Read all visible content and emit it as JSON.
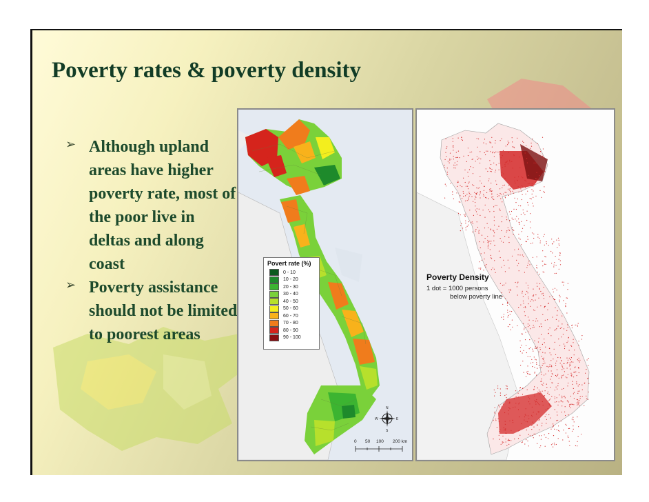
{
  "slide": {
    "title": "Poverty rates & poverty density",
    "bullets": [
      {
        "marker": "➢",
        "text": "Although upland areas have higher poverty rate, most of the poor live in deltas and along coast"
      },
      {
        "marker": "➢",
        "text": "Poverty assistance should not be limited to poorest areas"
      }
    ]
  },
  "left_map": {
    "legend_title": "Povert rate (%)",
    "legend_items": [
      {
        "label": "0 - 10",
        "color": "#0b5a1e"
      },
      {
        "label": "10 - 20",
        "color": "#1e8a2b"
      },
      {
        "label": "20 - 30",
        "color": "#3cb431"
      },
      {
        "label": "30 - 40",
        "color": "#7ad13a"
      },
      {
        "label": "40 - 50",
        "color": "#b7e02c"
      },
      {
        "label": "50 - 60",
        "color": "#f3ee1e"
      },
      {
        "label": "60 - 70",
        "color": "#f8b21b"
      },
      {
        "label": "70 - 80",
        "color": "#f07c1c"
      },
      {
        "label": "80 - 90",
        "color": "#d5241c"
      },
      {
        "label": "90 - 100",
        "color": "#8a0f12"
      }
    ],
    "compass": {
      "n": "N",
      "s": "S",
      "e": "E",
      "w": "W"
    },
    "scale_labels": [
      "0",
      "50",
      "100",
      "200 km"
    ]
  },
  "right_map": {
    "title": "Poverty Density",
    "note_line1": "1 dot = 1000 persons",
    "note_line2": "below poverty line",
    "dot_color": "#d42a2a"
  }
}
